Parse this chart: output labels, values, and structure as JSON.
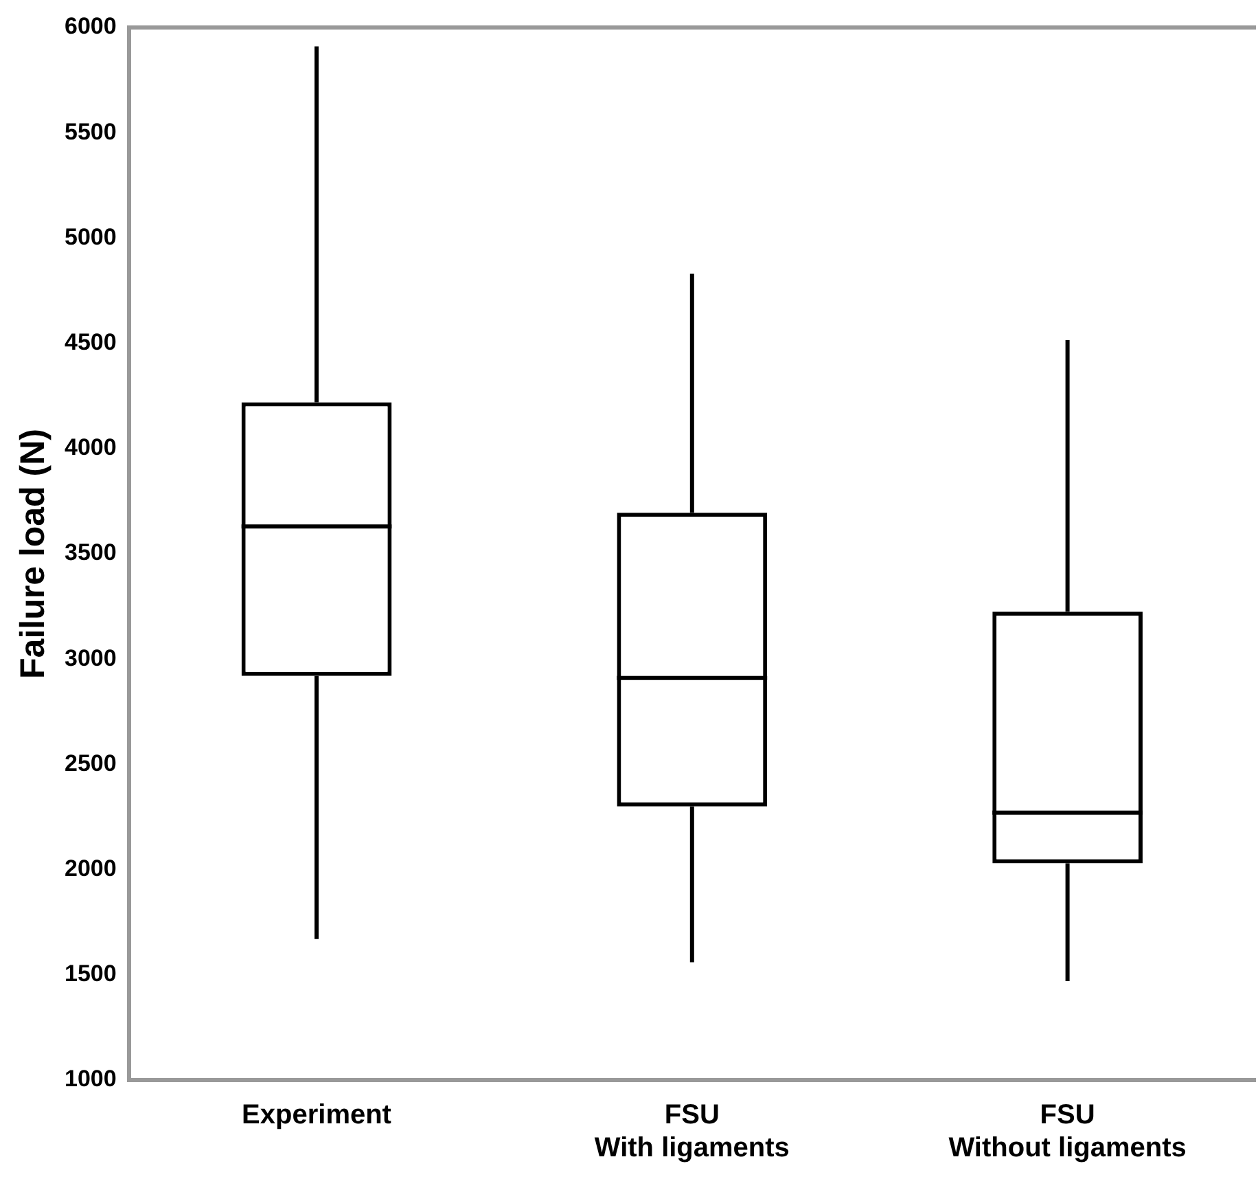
{
  "chart_data": {
    "type": "box",
    "ylabel": "Failure load (N)",
    "categories": [
      "Experiment",
      "FSU\nWith ligaments",
      "FSU\nWithout ligaments"
    ],
    "series": [
      {
        "color": "#000000",
        "boxes": [
          {
            "low": 1670,
            "q1": 2920,
            "median": 3630,
            "q3": 4220,
            "high": 5910
          },
          {
            "low": 1560,
            "q1": 2300,
            "median": 2910,
            "q3": 3695,
            "high": 4830
          },
          {
            "low": 1470,
            "q1": 2030,
            "median": 2270,
            "q3": 3225,
            "high": 4515
          }
        ]
      }
    ],
    "ylim": [
      1000,
      6000
    ],
    "yticks": [
      1000,
      1500,
      2000,
      2500,
      3000,
      3500,
      4000,
      4500,
      5000,
      5500,
      6000
    ],
    "grid": false,
    "legend": false
  }
}
